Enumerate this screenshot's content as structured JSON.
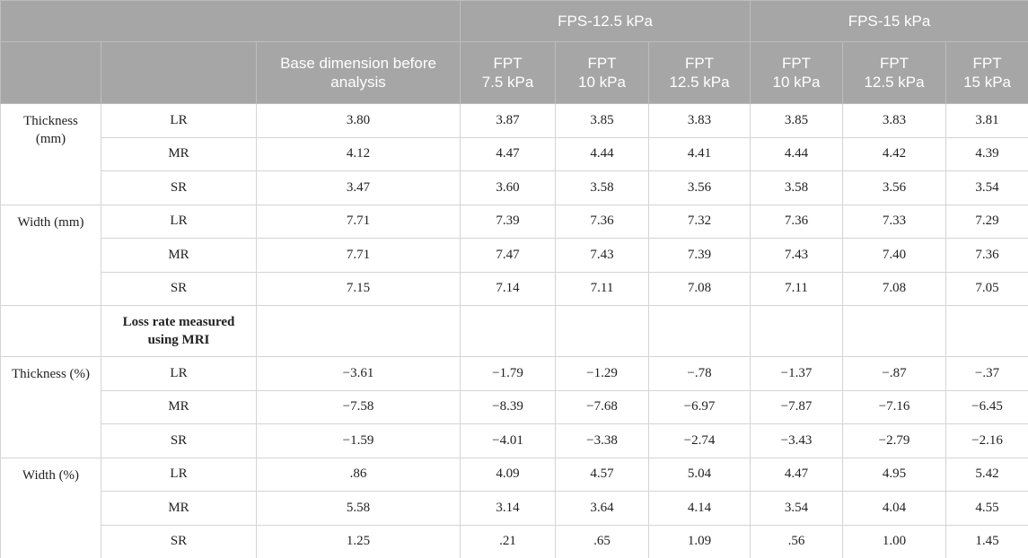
{
  "header": {
    "group_headers": [
      "FPS-12.5 kPa",
      "FPS-15 kPa"
    ],
    "columns": [
      "Base dimension before analysis",
      "FPT\n7.5 kPa",
      "FPT\n10 kPa",
      "FPT\n12.5 kPa",
      "FPT\n10 kPa",
      "FPT\n12.5 kPa",
      "FPT\n15 kPa"
    ]
  },
  "table": {
    "sections": [
      {
        "label": "Thickness\n(mm)",
        "rows": [
          {
            "label": "LR",
            "values": [
              "3.80",
              "3.87",
              "3.85",
              "3.83",
              "3.85",
              "3.83",
              "3.81"
            ]
          },
          {
            "label": "MR",
            "values": [
              "4.12",
              "4.47",
              "4.44",
              "4.41",
              "4.44",
              "4.42",
              "4.39"
            ]
          },
          {
            "label": "SR",
            "values": [
              "3.47",
              "3.60",
              "3.58",
              "3.56",
              "3.58",
              "3.56",
              "3.54"
            ]
          }
        ]
      },
      {
        "label": "Width (mm)",
        "rows": [
          {
            "label": "LR",
            "values": [
              "7.71",
              "7.39",
              "7.36",
              "7.32",
              "7.36",
              "7.33",
              "7.29"
            ]
          },
          {
            "label": "MR",
            "values": [
              "7.71",
              "7.47",
              "7.43",
              "7.39",
              "7.43",
              "7.40",
              "7.36"
            ]
          },
          {
            "label": "SR",
            "values": [
              "7.15",
              "7.14",
              "7.11",
              "7.08",
              "7.11",
              "7.08",
              "7.05"
            ]
          }
        ]
      },
      {
        "note": "Loss rate measured using MRI"
      },
      {
        "label": "Thickness (%)",
        "rows": [
          {
            "label": "LR",
            "values": [
              "−3.61",
              "−1.79",
              "−1.29",
              "−.78",
              "−1.37",
              "−.87",
              "−.37"
            ]
          },
          {
            "label": "MR",
            "values": [
              "−7.58",
              "−8.39",
              "−7.68",
              "−6.97",
              "−7.87",
              "−7.16",
              "−6.45"
            ]
          },
          {
            "label": "SR",
            "values": [
              "−1.59",
              "−4.01",
              "−3.38",
              "−2.74",
              "−3.43",
              "−2.79",
              "−2.16"
            ]
          }
        ]
      },
      {
        "label": "Width (%)",
        "rows": [
          {
            "label": "LR",
            "values": [
              ".86",
              "4.09",
              "4.57",
              "5.04",
              "4.47",
              "4.95",
              "5.42"
            ]
          },
          {
            "label": "MR",
            "values": [
              "5.58",
              "3.14",
              "3.64",
              "4.14",
              "3.54",
              "4.04",
              "4.55"
            ]
          },
          {
            "label": "SR",
            "values": [
              "1.25",
              ".21",
              ".65",
              "1.09",
              ".56",
              "1.00",
              "1.45"
            ]
          }
        ]
      }
    ]
  }
}
